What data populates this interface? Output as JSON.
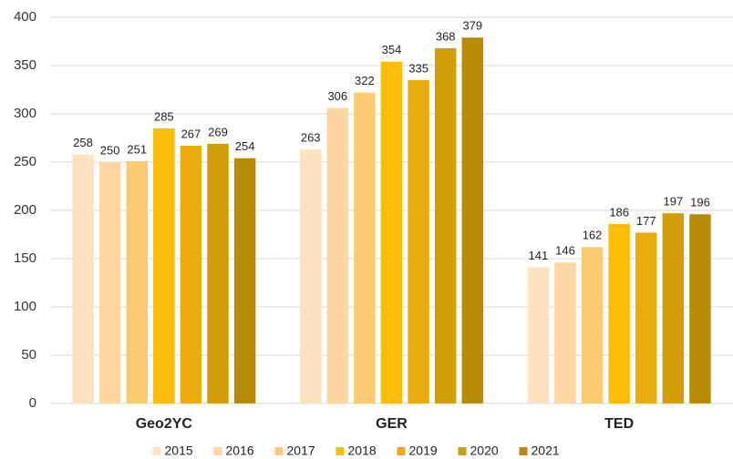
{
  "chart_data": {
    "type": "bar",
    "categories": [
      "Geo2YC",
      "GER",
      "TED"
    ],
    "series": [
      {
        "name": "2015",
        "color": "#fde3c1",
        "values": [
          258,
          263,
          141
        ]
      },
      {
        "name": "2016",
        "color": "#fdd6a2",
        "values": [
          250,
          306,
          146
        ]
      },
      {
        "name": "2017",
        "color": "#fcca72",
        "values": [
          251,
          322,
          162
        ]
      },
      {
        "name": "2018",
        "color": "#fbbd0a",
        "values": [
          285,
          354,
          186
        ]
      },
      {
        "name": "2019",
        "color": "#e8ad0c",
        "values": [
          267,
          335,
          177
        ]
      },
      {
        "name": "2020",
        "color": "#d29e08",
        "values": [
          269,
          368,
          197
        ]
      },
      {
        "name": "2021",
        "color": "#b88b07",
        "values": [
          254,
          379,
          196
        ]
      }
    ],
    "ylim": [
      0,
      400
    ],
    "yticks": [
      0,
      50,
      100,
      150,
      200,
      250,
      300,
      350,
      400
    ],
    "grid": true,
    "legend": "bottom"
  }
}
